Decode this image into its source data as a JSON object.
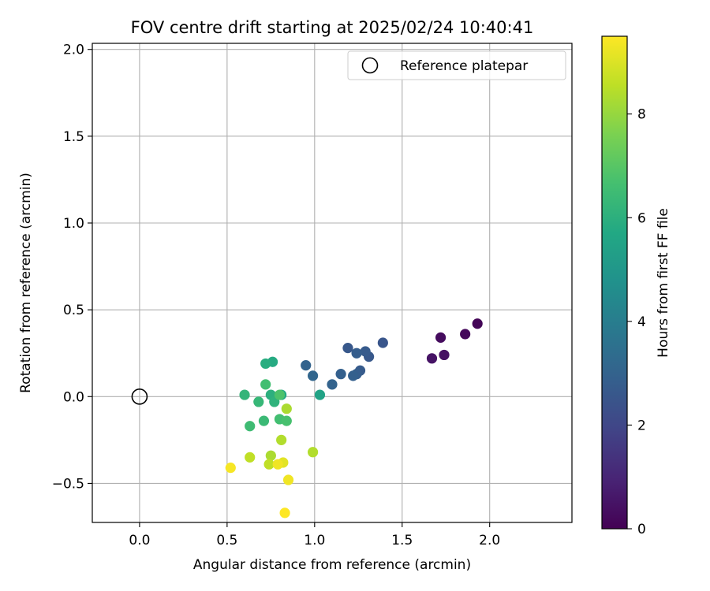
{
  "chart_data": {
    "type": "scatter",
    "title": "FOV centre drift starting at 2025/02/24 10:40:41",
    "xlabel": "Angular distance from reference (arcmin)",
    "ylabel": "Rotation from reference (arcmin)",
    "xlim": [
      -0.27,
      2.47
    ],
    "ylim": [
      -0.725,
      2.035
    ],
    "xticks": [
      0.0,
      0.5,
      1.0,
      1.5,
      2.0
    ],
    "xtick_labels": [
      "0.0",
      "0.5",
      "1.0",
      "1.5",
      "2.0"
    ],
    "yticks": [
      -0.5,
      0.0,
      0.5,
      1.0,
      1.5,
      2.0
    ],
    "ytick_labels": [
      "−0.5",
      "0.0",
      "0.5",
      "1.0",
      "1.5",
      "2.0"
    ],
    "grid": true,
    "legend": {
      "location": "top-right",
      "entries": [
        {
          "label": "Reference platepar",
          "marker": "hollow-circle",
          "color": "#000000"
        }
      ]
    },
    "reference_point": {
      "x": 0.0,
      "y": 0.0
    },
    "colormap": "viridis",
    "colorbar": {
      "label": "Hours from first FF file",
      "range": [
        0,
        9.5
      ],
      "ticks": [
        0,
        2,
        4,
        6,
        8
      ],
      "tick_labels": [
        "0",
        "2",
        "4",
        "6",
        "8"
      ]
    },
    "points": [
      {
        "x": 1.93,
        "y": 0.42,
        "hours": 0.1
      },
      {
        "x": 1.86,
        "y": 0.36,
        "hours": 0.2
      },
      {
        "x": 1.72,
        "y": 0.34,
        "hours": 0.3
      },
      {
        "x": 1.74,
        "y": 0.24,
        "hours": 0.4
      },
      {
        "x": 1.67,
        "y": 0.22,
        "hours": 0.5
      },
      {
        "x": 1.39,
        "y": 0.31,
        "hours": 2.5
      },
      {
        "x": 1.31,
        "y": 0.23,
        "hours": 2.6
      },
      {
        "x": 1.29,
        "y": 0.26,
        "hours": 2.7
      },
      {
        "x": 1.19,
        "y": 0.28,
        "hours": 2.6
      },
      {
        "x": 1.24,
        "y": 0.25,
        "hours": 2.8
      },
      {
        "x": 1.26,
        "y": 0.15,
        "hours": 2.7
      },
      {
        "x": 1.24,
        "y": 0.13,
        "hours": 2.8
      },
      {
        "x": 1.22,
        "y": 0.12,
        "hours": 2.9
      },
      {
        "x": 1.15,
        "y": 0.13,
        "hours": 2.9
      },
      {
        "x": 1.1,
        "y": 0.07,
        "hours": 3.0
      },
      {
        "x": 0.99,
        "y": 0.12,
        "hours": 3.1
      },
      {
        "x": 0.95,
        "y": 0.18,
        "hours": 3.0
      },
      {
        "x": 1.03,
        "y": 0.01,
        "hours": 5.5
      },
      {
        "x": 0.81,
        "y": 0.01,
        "hours": 5.7
      },
      {
        "x": 0.76,
        "y": 0.2,
        "hours": 5.8
      },
      {
        "x": 0.72,
        "y": 0.19,
        "hours": 5.9
      },
      {
        "x": 0.75,
        "y": 0.01,
        "hours": 6.0
      },
      {
        "x": 0.6,
        "y": 0.01,
        "hours": 6.2
      },
      {
        "x": 0.77,
        "y": -0.03,
        "hours": 6.1
      },
      {
        "x": 0.68,
        "y": -0.03,
        "hours": 6.3
      },
      {
        "x": 0.71,
        "y": -0.14,
        "hours": 6.4
      },
      {
        "x": 0.63,
        "y": -0.17,
        "hours": 6.5
      },
      {
        "x": 0.8,
        "y": -0.13,
        "hours": 6.6
      },
      {
        "x": 0.84,
        "y": -0.14,
        "hours": 6.7
      },
      {
        "x": 0.72,
        "y": 0.07,
        "hours": 6.6
      },
      {
        "x": 0.8,
        "y": 0.01,
        "hours": 6.8
      },
      {
        "x": 0.84,
        "y": -0.07,
        "hours": 8.3
      },
      {
        "x": 0.81,
        "y": -0.25,
        "hours": 8.4
      },
      {
        "x": 0.99,
        "y": -0.32,
        "hours": 8.4
      },
      {
        "x": 0.75,
        "y": -0.34,
        "hours": 8.3
      },
      {
        "x": 0.63,
        "y": -0.35,
        "hours": 8.6
      },
      {
        "x": 0.74,
        "y": -0.39,
        "hours": 8.6
      },
      {
        "x": 0.82,
        "y": -0.38,
        "hours": 9.1
      },
      {
        "x": 0.79,
        "y": -0.39,
        "hours": 9.3
      },
      {
        "x": 0.85,
        "y": -0.48,
        "hours": 9.3
      },
      {
        "x": 0.52,
        "y": -0.41,
        "hours": 9.4
      },
      {
        "x": 0.83,
        "y": -0.67,
        "hours": 9.5
      }
    ]
  }
}
